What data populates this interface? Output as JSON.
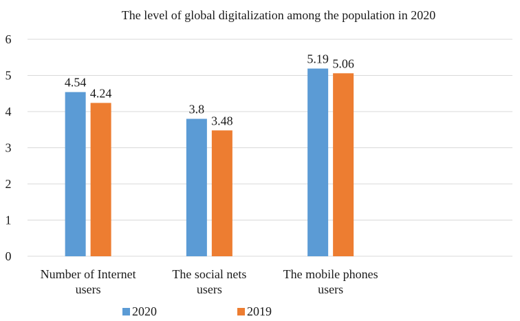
{
  "chart_data": {
    "type": "bar",
    "title": "The level of global digitalization among the population in 2020",
    "xlabel": "",
    "ylabel": "",
    "categories": [
      [
        "Number of Internet",
        "users"
      ],
      [
        "The social nets",
        "users"
      ],
      [
        "The mobile phones",
        "users"
      ]
    ],
    "series": [
      {
        "name": "2020",
        "color": "#5b9bd5",
        "values": [
          4.54,
          3.8,
          5.19
        ]
      },
      {
        "name": "2019",
        "color": "#ed7d31",
        "values": [
          4.24,
          3.48,
          5.06
        ]
      }
    ],
    "ylim": [
      0,
      6
    ],
    "yticks": [
      0,
      1,
      2,
      3,
      4,
      5,
      6
    ],
    "grid": true,
    "legend_position": "bottom"
  }
}
